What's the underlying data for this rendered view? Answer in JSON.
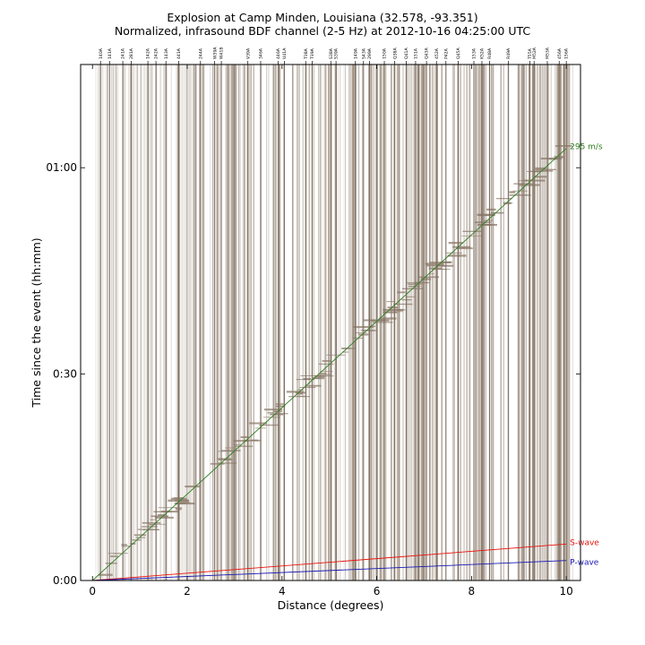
{
  "chart_data": {
    "type": "line",
    "title": "Explosion at Camp Minden, Louisiana (32.578, -93.351)",
    "subtitle": "Normalized, infrasound BDF channel (2-5 Hz) at 2012-10-16 04:25:00 UTC",
    "xlabel": "Distance (degrees)",
    "ylabel": "Time since the event (hh:mm)",
    "xlim": [
      -0.25,
      10.3
    ],
    "ylim": [
      0,
      75
    ],
    "x_ticks": [
      0,
      2,
      4,
      6,
      8,
      10
    ],
    "x_tick_labels": [
      "0",
      "2",
      "4",
      "6",
      "8",
      "10"
    ],
    "y_ticks": [
      0,
      30,
      60
    ],
    "y_tick_labels": [
      "0:00",
      "0:30",
      "01:00"
    ],
    "grid": false,
    "trace_color": "#8c7b6b",
    "stations": [
      {
        "label": "140A",
        "x": 0.17
      },
      {
        "label": "141A",
        "x": 0.36
      },
      {
        "label": "241A",
        "x": 0.64
      },
      {
        "label": "281A",
        "x": 0.82
      },
      {
        "label": "142A",
        "x": 1.17
      },
      {
        "label": "242A",
        "x": 1.34
      },
      {
        "label": "143A",
        "x": 1.55
      },
      {
        "label": "441A",
        "x": 1.82
      },
      {
        "label": "244A",
        "x": 2.28
      },
      {
        "label": "W39A",
        "x": 2.58
      },
      {
        "label": "W41B",
        "x": 2.72
      },
      {
        "label": "V39A",
        "x": 3.28
      },
      {
        "label": "346A",
        "x": 3.55
      },
      {
        "label": "446A",
        "x": 3.92
      },
      {
        "label": "U41A",
        "x": 4.05
      },
      {
        "label": "T38A",
        "x": 4.5
      },
      {
        "label": "T39A",
        "x": 4.64
      },
      {
        "label": "S38A",
        "x": 5.03
      },
      {
        "label": "S39A",
        "x": 5.14
      },
      {
        "label": "149A",
        "x": 5.55
      },
      {
        "label": "S43A",
        "x": 5.72
      },
      {
        "label": "299A",
        "x": 5.85
      },
      {
        "label": "150A",
        "x": 6.16
      },
      {
        "label": "Q38A",
        "x": 6.38
      },
      {
        "label": "Q41A",
        "x": 6.62
      },
      {
        "label": "151A",
        "x": 6.82
      },
      {
        "label": "Q43A",
        "x": 7.05
      },
      {
        "label": "452A",
        "x": 7.26
      },
      {
        "label": "P42A",
        "x": 7.46
      },
      {
        "label": "Q45A",
        "x": 7.72
      },
      {
        "label": "153A",
        "x": 8.05
      },
      {
        "label": "K52A",
        "x": 8.22
      },
      {
        "label": "R48A",
        "x": 8.38
      },
      {
        "label": "R49A",
        "x": 8.78
      },
      {
        "label": "T55A",
        "x": 9.23
      },
      {
        "label": "M52A",
        "x": 9.32
      },
      {
        "label": "M53A",
        "x": 9.6
      },
      {
        "label": "456A",
        "x": 9.85
      },
      {
        "label": "156A",
        "x": 10.0
      }
    ],
    "series": [
      {
        "name": "295 m/s",
        "color": "#2e7d1f",
        "x": [
          0,
          10
        ],
        "y": [
          0,
          62.8
        ]
      },
      {
        "name": "S-wave",
        "color": "#e8120c",
        "x": [
          0,
          10
        ],
        "y": [
          0,
          5.3
        ]
      },
      {
        "name": "P-wave",
        "color": "#1a1ab4",
        "x": [
          0,
          10
        ],
        "y": [
          0,
          2.9
        ]
      }
    ]
  }
}
